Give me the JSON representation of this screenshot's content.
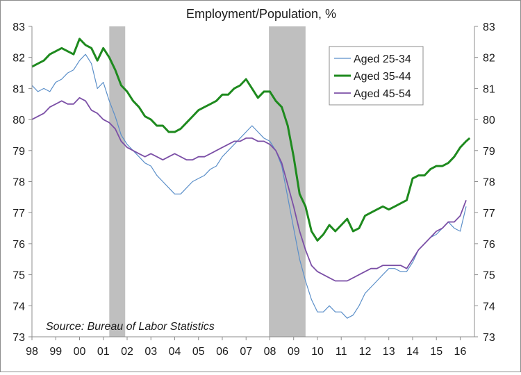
{
  "chart_data": {
    "type": "line",
    "title": "Employment/Population, %",
    "source_note": "Source: Bureau of Labor Statistics",
    "x_tick_labels": [
      "98",
      "99",
      "00",
      "01",
      "02",
      "03",
      "04",
      "05",
      "06",
      "07",
      "08",
      "09",
      "10",
      "11",
      "12",
      "13",
      "14",
      "15",
      "16"
    ],
    "xlim": [
      1998.0,
      2016.6
    ],
    "ylim": [
      73,
      83
    ],
    "y_ticks": [
      73,
      74,
      75,
      76,
      77,
      78,
      79,
      80,
      81,
      82,
      83
    ],
    "y_tick_labels": [
      "73",
      "74",
      "75",
      "76",
      "77",
      "78",
      "79",
      "80",
      "81",
      "82",
      "83"
    ],
    "grid": false,
    "legend_position": "top-right",
    "recessions": [
      {
        "start": 2001.25,
        "end": 2001.92
      },
      {
        "start": 2007.96,
        "end": 2009.5
      }
    ],
    "series": [
      {
        "name": "Aged 25-34",
        "color": "#5b8fc9",
        "points": [
          [
            1998.0,
            81.1
          ],
          [
            1998.25,
            80.9
          ],
          [
            1998.5,
            81.0
          ],
          [
            1998.75,
            80.9
          ],
          [
            1999.0,
            81.2
          ],
          [
            1999.25,
            81.3
          ],
          [
            1999.5,
            81.5
          ],
          [
            1999.75,
            81.6
          ],
          [
            2000.0,
            81.9
          ],
          [
            2000.25,
            82.1
          ],
          [
            2000.5,
            81.8
          ],
          [
            2000.75,
            81.0
          ],
          [
            2001.0,
            81.2
          ],
          [
            2001.25,
            80.6
          ],
          [
            2001.5,
            80.1
          ],
          [
            2001.75,
            79.5
          ],
          [
            2002.0,
            79.2
          ],
          [
            2002.25,
            79.0
          ],
          [
            2002.5,
            78.8
          ],
          [
            2002.75,
            78.6
          ],
          [
            2003.0,
            78.5
          ],
          [
            2003.25,
            78.2
          ],
          [
            2003.5,
            78.0
          ],
          [
            2003.75,
            77.8
          ],
          [
            2004.0,
            77.6
          ],
          [
            2004.25,
            77.6
          ],
          [
            2004.5,
            77.8
          ],
          [
            2004.75,
            78.0
          ],
          [
            2005.0,
            78.1
          ],
          [
            2005.25,
            78.2
          ],
          [
            2005.5,
            78.4
          ],
          [
            2005.75,
            78.5
          ],
          [
            2006.0,
            78.8
          ],
          [
            2006.25,
            79.0
          ],
          [
            2006.5,
            79.2
          ],
          [
            2006.75,
            79.4
          ],
          [
            2007.0,
            79.6
          ],
          [
            2007.25,
            79.8
          ],
          [
            2007.5,
            79.6
          ],
          [
            2007.75,
            79.4
          ],
          [
            2008.0,
            79.3
          ],
          [
            2008.25,
            79.0
          ],
          [
            2008.5,
            78.5
          ],
          [
            2008.75,
            77.5
          ],
          [
            2009.0,
            76.5
          ],
          [
            2009.25,
            75.5
          ],
          [
            2009.5,
            74.8
          ],
          [
            2009.75,
            74.2
          ],
          [
            2010.0,
            73.8
          ],
          [
            2010.25,
            73.8
          ],
          [
            2010.5,
            74.0
          ],
          [
            2010.75,
            73.8
          ],
          [
            2011.0,
            73.8
          ],
          [
            2011.25,
            73.6
          ],
          [
            2011.5,
            73.7
          ],
          [
            2011.75,
            74.0
          ],
          [
            2012.0,
            74.4
          ],
          [
            2012.25,
            74.6
          ],
          [
            2012.5,
            74.8
          ],
          [
            2012.75,
            75.0
          ],
          [
            2013.0,
            75.2
          ],
          [
            2013.25,
            75.2
          ],
          [
            2013.5,
            75.1
          ],
          [
            2013.75,
            75.1
          ],
          [
            2014.0,
            75.4
          ],
          [
            2014.25,
            75.8
          ],
          [
            2014.5,
            76.0
          ],
          [
            2014.75,
            76.2
          ],
          [
            2015.0,
            76.3
          ],
          [
            2015.25,
            76.5
          ],
          [
            2015.5,
            76.7
          ],
          [
            2015.75,
            76.5
          ],
          [
            2016.0,
            76.4
          ],
          [
            2016.25,
            77.2
          ]
        ]
      },
      {
        "name": "Aged 35-44",
        "color": "#1e8a1e",
        "points": [
          [
            1998.0,
            81.7
          ],
          [
            1998.25,
            81.8
          ],
          [
            1998.5,
            81.9
          ],
          [
            1998.75,
            82.1
          ],
          [
            1999.0,
            82.2
          ],
          [
            1999.25,
            82.3
          ],
          [
            1999.5,
            82.2
          ],
          [
            1999.75,
            82.1
          ],
          [
            2000.0,
            82.6
          ],
          [
            2000.25,
            82.4
          ],
          [
            2000.5,
            82.3
          ],
          [
            2000.75,
            81.9
          ],
          [
            2001.0,
            82.3
          ],
          [
            2001.25,
            82.0
          ],
          [
            2001.5,
            81.6
          ],
          [
            2001.75,
            81.1
          ],
          [
            2002.0,
            80.9
          ],
          [
            2002.25,
            80.6
          ],
          [
            2002.5,
            80.4
          ],
          [
            2002.75,
            80.1
          ],
          [
            2003.0,
            80.0
          ],
          [
            2003.25,
            79.8
          ],
          [
            2003.5,
            79.8
          ],
          [
            2003.75,
            79.6
          ],
          [
            2004.0,
            79.6
          ],
          [
            2004.25,
            79.7
          ],
          [
            2004.5,
            79.9
          ],
          [
            2004.75,
            80.1
          ],
          [
            2005.0,
            80.3
          ],
          [
            2005.25,
            80.4
          ],
          [
            2005.5,
            80.5
          ],
          [
            2005.75,
            80.6
          ],
          [
            2006.0,
            80.8
          ],
          [
            2006.25,
            80.8
          ],
          [
            2006.5,
            81.0
          ],
          [
            2006.75,
            81.1
          ],
          [
            2007.0,
            81.3
          ],
          [
            2007.25,
            81.0
          ],
          [
            2007.5,
            80.7
          ],
          [
            2007.75,
            80.9
          ],
          [
            2008.0,
            80.9
          ],
          [
            2008.25,
            80.6
          ],
          [
            2008.5,
            80.4
          ],
          [
            2008.75,
            79.8
          ],
          [
            2009.0,
            78.8
          ],
          [
            2009.25,
            77.6
          ],
          [
            2009.5,
            77.2
          ],
          [
            2009.75,
            76.4
          ],
          [
            2010.0,
            76.1
          ],
          [
            2010.25,
            76.3
          ],
          [
            2010.5,
            76.6
          ],
          [
            2010.75,
            76.4
          ],
          [
            2011.0,
            76.6
          ],
          [
            2011.25,
            76.8
          ],
          [
            2011.5,
            76.4
          ],
          [
            2011.75,
            76.5
          ],
          [
            2012.0,
            76.9
          ],
          [
            2012.25,
            77.0
          ],
          [
            2012.5,
            77.1
          ],
          [
            2012.75,
            77.2
          ],
          [
            2013.0,
            77.1
          ],
          [
            2013.25,
            77.2
          ],
          [
            2013.5,
            77.3
          ],
          [
            2013.75,
            77.4
          ],
          [
            2014.0,
            78.1
          ],
          [
            2014.25,
            78.2
          ],
          [
            2014.5,
            78.2
          ],
          [
            2014.75,
            78.4
          ],
          [
            2015.0,
            78.5
          ],
          [
            2015.25,
            78.5
          ],
          [
            2015.5,
            78.6
          ],
          [
            2015.75,
            78.8
          ],
          [
            2016.0,
            79.1
          ],
          [
            2016.25,
            79.3
          ],
          [
            2016.4,
            79.4
          ]
        ]
      },
      {
        "name": "Aged 45-54",
        "color": "#7b4fa6",
        "points": [
          [
            1998.0,
            80.0
          ],
          [
            1998.25,
            80.1
          ],
          [
            1998.5,
            80.2
          ],
          [
            1998.75,
            80.4
          ],
          [
            1999.0,
            80.5
          ],
          [
            1999.25,
            80.6
          ],
          [
            1999.5,
            80.5
          ],
          [
            1999.75,
            80.5
          ],
          [
            2000.0,
            80.7
          ],
          [
            2000.25,
            80.6
          ],
          [
            2000.5,
            80.3
          ],
          [
            2000.75,
            80.2
          ],
          [
            2001.0,
            80.0
          ],
          [
            2001.25,
            79.9
          ],
          [
            2001.5,
            79.7
          ],
          [
            2001.75,
            79.3
          ],
          [
            2002.0,
            79.1
          ],
          [
            2002.25,
            79.0
          ],
          [
            2002.5,
            78.9
          ],
          [
            2002.75,
            78.8
          ],
          [
            2003.0,
            78.9
          ],
          [
            2003.25,
            78.8
          ],
          [
            2003.5,
            78.7
          ],
          [
            2003.75,
            78.8
          ],
          [
            2004.0,
            78.9
          ],
          [
            2004.25,
            78.8
          ],
          [
            2004.5,
            78.7
          ],
          [
            2004.75,
            78.7
          ],
          [
            2005.0,
            78.8
          ],
          [
            2005.25,
            78.8
          ],
          [
            2005.5,
            78.9
          ],
          [
            2005.75,
            79.0
          ],
          [
            2006.0,
            79.1
          ],
          [
            2006.25,
            79.2
          ],
          [
            2006.5,
            79.3
          ],
          [
            2006.75,
            79.3
          ],
          [
            2007.0,
            79.4
          ],
          [
            2007.25,
            79.4
          ],
          [
            2007.5,
            79.3
          ],
          [
            2007.75,
            79.3
          ],
          [
            2008.0,
            79.2
          ],
          [
            2008.25,
            79.0
          ],
          [
            2008.5,
            78.6
          ],
          [
            2008.75,
            77.9
          ],
          [
            2009.0,
            77.2
          ],
          [
            2009.25,
            76.4
          ],
          [
            2009.5,
            75.8
          ],
          [
            2009.75,
            75.3
          ],
          [
            2010.0,
            75.1
          ],
          [
            2010.25,
            75.0
          ],
          [
            2010.5,
            74.9
          ],
          [
            2010.75,
            74.8
          ],
          [
            2011.0,
            74.8
          ],
          [
            2011.25,
            74.8
          ],
          [
            2011.5,
            74.9
          ],
          [
            2011.75,
            75.0
          ],
          [
            2012.0,
            75.1
          ],
          [
            2012.25,
            75.2
          ],
          [
            2012.5,
            75.2
          ],
          [
            2012.75,
            75.3
          ],
          [
            2013.0,
            75.3
          ],
          [
            2013.25,
            75.3
          ],
          [
            2013.5,
            75.3
          ],
          [
            2013.75,
            75.2
          ],
          [
            2014.0,
            75.5
          ],
          [
            2014.25,
            75.8
          ],
          [
            2014.5,
            76.0
          ],
          [
            2014.75,
            76.2
          ],
          [
            2015.0,
            76.4
          ],
          [
            2015.25,
            76.5
          ],
          [
            2015.5,
            76.7
          ],
          [
            2015.75,
            76.7
          ],
          [
            2016.0,
            76.9
          ],
          [
            2016.25,
            77.4
          ]
        ]
      }
    ]
  }
}
